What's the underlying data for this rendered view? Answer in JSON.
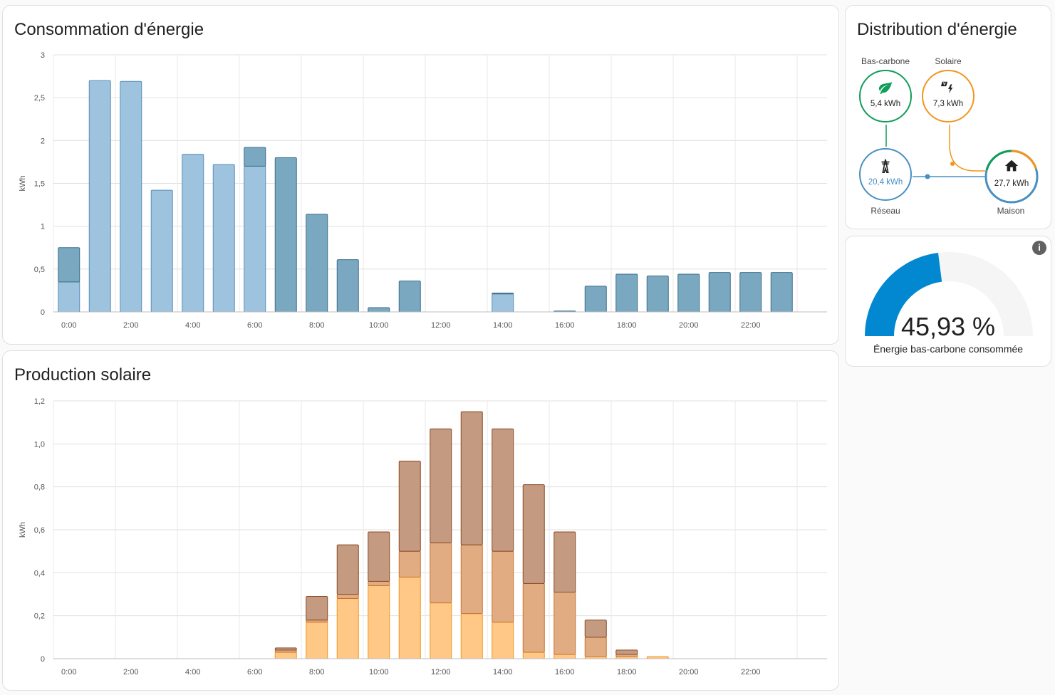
{
  "energy_usage": {
    "title": "Consommation d'énergie",
    "chart_data": {
      "type": "bar",
      "title": "Consommation d'énergie",
      "ylabel": "kWh",
      "ylim": [
        0,
        3
      ],
      "yticks": [
        "0",
        "0,5",
        "1",
        "1,5",
        "2",
        "2,5",
        "3"
      ],
      "xticks": [
        "0:00",
        "2:00",
        "4:00",
        "6:00",
        "8:00",
        "10:00",
        "12:00",
        "14:00",
        "16:00",
        "18:00",
        "20:00",
        "22:00"
      ],
      "categories": [
        "0:00",
        "1:00",
        "2:00",
        "3:00",
        "4:00",
        "5:00",
        "6:00",
        "7:00",
        "8:00",
        "9:00",
        "10:00",
        "11:00",
        "12:00",
        "13:00",
        "14:00",
        "15:00",
        "16:00",
        "17:00",
        "18:00",
        "19:00",
        "20:00",
        "21:00",
        "22:00",
        "23:00"
      ],
      "stacked": true,
      "grid": true,
      "series": [
        {
          "color": "#9ec3de",
          "stroke": "#5a8fb8",
          "values": [
            0.35,
            2.7,
            2.69,
            1.42,
            1.84,
            1.72,
            1.7,
            0,
            0,
            0,
            0,
            0,
            0,
            0,
            0.21,
            0,
            0,
            0,
            0,
            0,
            0,
            0,
            0,
            0
          ]
        },
        {
          "color": "#7aa8c0",
          "stroke": "#3e6e8a",
          "values": [
            0.4,
            0,
            0,
            0,
            0,
            0,
            0.22,
            1.8,
            1.14,
            0.61,
            0.05,
            0.36,
            0,
            0,
            0.01,
            0,
            0.01,
            0.3,
            0.44,
            0.42,
            0.44,
            0.46,
            0.46,
            0.46
          ]
        }
      ]
    }
  },
  "solar_production": {
    "title": "Production solaire",
    "chart_data": {
      "type": "bar",
      "title": "Production solaire",
      "ylabel": "kWh",
      "ylim": [
        0,
        1.2
      ],
      "yticks": [
        "0",
        "0,2",
        "0,4",
        "0,6",
        "0,8",
        "1,0",
        "1,2"
      ],
      "xticks": [
        "0:00",
        "2:00",
        "4:00",
        "6:00",
        "8:00",
        "10:00",
        "12:00",
        "14:00",
        "16:00",
        "18:00",
        "20:00",
        "22:00"
      ],
      "categories": [
        "0:00",
        "1:00",
        "2:00",
        "3:00",
        "4:00",
        "5:00",
        "6:00",
        "7:00",
        "8:00",
        "9:00",
        "10:00",
        "11:00",
        "12:00",
        "13:00",
        "14:00",
        "15:00",
        "16:00",
        "17:00",
        "18:00",
        "19:00",
        "20:00",
        "21:00",
        "22:00",
        "23:00"
      ],
      "stacked": true,
      "grid": true,
      "series": [
        {
          "color": "#ffc887",
          "stroke": "#f4951f",
          "values": [
            0,
            0,
            0,
            0,
            0,
            0,
            0,
            0.03,
            0.17,
            0.28,
            0.34,
            0.38,
            0.26,
            0.21,
            0.17,
            0.03,
            0.02,
            0.01,
            0.01,
            0.01,
            0,
            0,
            0,
            0
          ]
        },
        {
          "color": "#e1ac82",
          "stroke": "#c9712c",
          "values": [
            0,
            0,
            0,
            0,
            0,
            0,
            0,
            0.01,
            0.01,
            0.02,
            0.02,
            0.12,
            0.28,
            0.32,
            0.33,
            0.32,
            0.29,
            0.09,
            0.01,
            0,
            0,
            0,
            0,
            0
          ]
        },
        {
          "color": "#c49a80",
          "stroke": "#8a4a26",
          "values": [
            0,
            0,
            0,
            0,
            0,
            0,
            0,
            0.01,
            0.11,
            0.23,
            0.23,
            0.42,
            0.53,
            0.62,
            0.57,
            0.46,
            0.28,
            0.08,
            0.02,
            0,
            0,
            0,
            0,
            0
          ]
        }
      ]
    }
  },
  "distribution": {
    "title": "Distribution d'énergie",
    "low_carbon": {
      "label": "Bas-carbone",
      "value": "5,4 kWh",
      "color": "#0f9d58",
      "icon": "leaf-icon"
    },
    "solar": {
      "label": "Solaire",
      "value": "7,3 kWh",
      "color": "#f0961f",
      "icon": "solar-power-icon"
    },
    "grid": {
      "label": "Réseau",
      "value": "20,4 kWh",
      "color": "#488fc2",
      "icon": "transmission-tower-icon"
    },
    "home": {
      "label": "Maison",
      "value": "27,7 kWh",
      "color": "#488fc2",
      "icon": "home-icon"
    }
  },
  "gauge": {
    "value": 45.93,
    "value_text": "45,93 %",
    "name": "Énergie bas-carbone consommée",
    "color": "#0288d1",
    "track_color": "#f5f5f5"
  }
}
